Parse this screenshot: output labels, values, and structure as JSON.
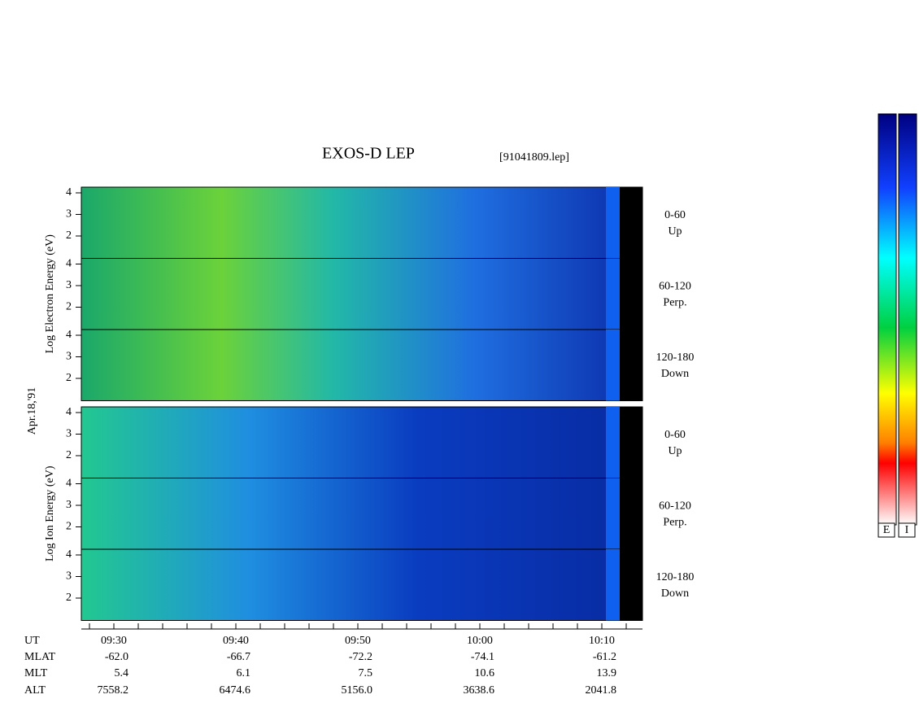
{
  "header": {
    "title": "EXOS-D LEP",
    "file": "[91041809.lep]"
  },
  "date": "Apr.18,'91",
  "energy_ticks": [
    "4",
    "3",
    "2"
  ],
  "groups": [
    {
      "axis_label": "Log Electron Energy (eV)",
      "panels": [
        {
          "angle": "0-60",
          "direction": "Up"
        },
        {
          "angle": "60-120",
          "direction": "Perp."
        },
        {
          "angle": "120-180",
          "direction": "Down"
        }
      ]
    },
    {
      "axis_label": "Log Ion Energy (eV)",
      "panels": [
        {
          "angle": "0-60",
          "direction": "Up"
        },
        {
          "angle": "60-120",
          "direction": "Perp."
        },
        {
          "angle": "120-180",
          "direction": "Down"
        }
      ]
    }
  ],
  "orbit_table": {
    "labels": [
      "UT",
      "MLAT",
      "MLT",
      "ALT"
    ],
    "rows": [
      [
        "09:30",
        "09:40",
        "09:50",
        "10:00",
        "10:10"
      ],
      [
        "-62.0",
        "-66.7",
        "-72.2",
        "-74.1",
        "-61.2"
      ],
      [
        "5.4",
        "6.1",
        "7.5",
        "10.6",
        "13.9"
      ],
      [
        "7558.2",
        "6474.6",
        "5156.0",
        "3638.6",
        "2041.8"
      ]
    ]
  },
  "colorbar": {
    "labels": [
      "E",
      "I"
    ]
  }
}
